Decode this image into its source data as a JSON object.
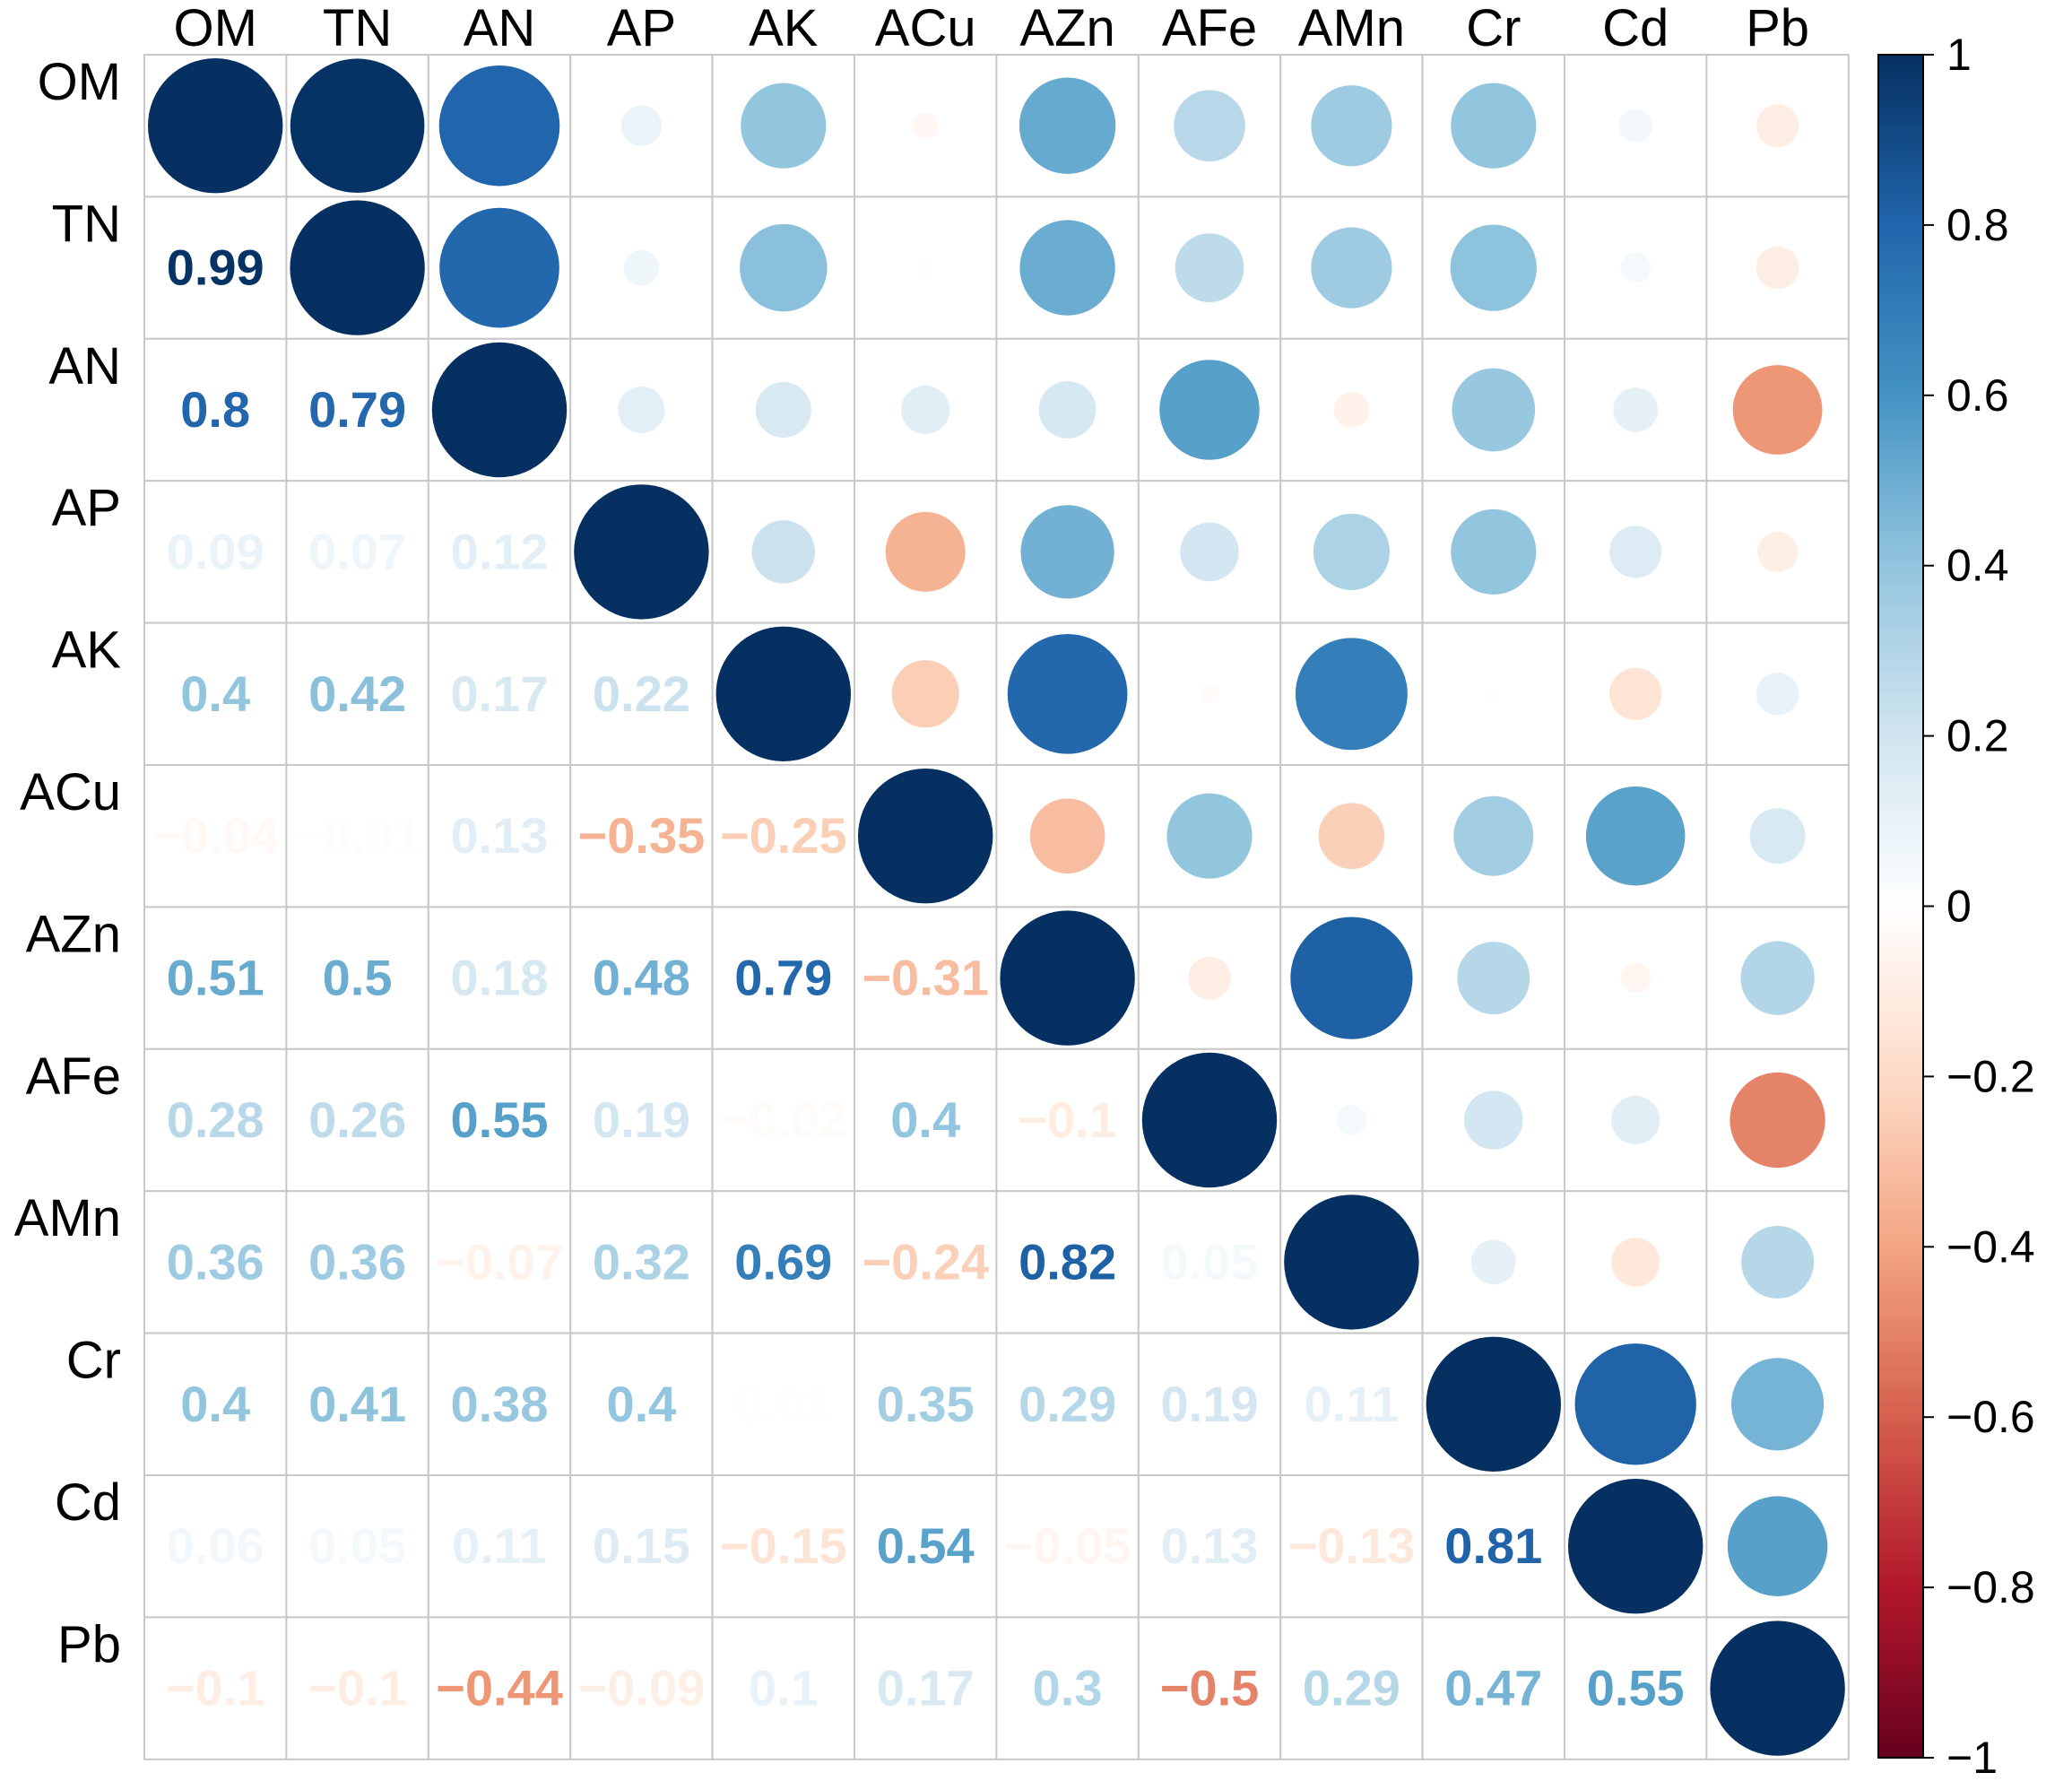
{
  "chart_data": {
    "type": "heatmap",
    "style": "corrplot-mixed",
    "upper": "circle",
    "lower": "number",
    "variables": [
      "OM",
      "TN",
      "AN",
      "AP",
      "AK",
      "ACu",
      "AZn",
      "AFe",
      "AMn",
      "Cr",
      "Cd",
      "Pb"
    ],
    "matrix": [
      [
        1,
        0.99,
        0.8,
        0.09,
        0.4,
        -0.04,
        0.51,
        0.28,
        0.36,
        0.4,
        0.06,
        -0.1
      ],
      [
        0.99,
        1,
        0.79,
        0.07,
        0.42,
        -0.01,
        0.5,
        0.26,
        0.36,
        0.41,
        0.05,
        -0.1
      ],
      [
        0.8,
        0.79,
        1,
        0.12,
        0.17,
        0.13,
        0.18,
        0.55,
        -0.07,
        0.38,
        0.11,
        -0.44
      ],
      [
        0.09,
        0.07,
        0.12,
        1,
        0.22,
        -0.35,
        0.48,
        0.19,
        0.32,
        0.4,
        0.15,
        -0.09
      ],
      [
        0.4,
        0.42,
        0.17,
        0.22,
        1,
        -0.25,
        0.79,
        -0.02,
        0.69,
        0.01,
        -0.15,
        0.1
      ],
      [
        -0.04,
        -0.01,
        0.13,
        -0.35,
        -0.25,
        1,
        -0.31,
        0.4,
        -0.24,
        0.35,
        0.54,
        0.17
      ],
      [
        0.51,
        0.5,
        0.18,
        0.48,
        0.79,
        -0.31,
        1,
        -0.1,
        0.82,
        0.29,
        -0.05,
        0.3
      ],
      [
        0.28,
        0.26,
        0.55,
        0.19,
        -0.02,
        0.4,
        -0.1,
        1,
        0.05,
        0.19,
        0.13,
        -0.5
      ],
      [
        0.36,
        0.36,
        -0.07,
        0.32,
        0.69,
        -0.24,
        0.82,
        0.05,
        1,
        0.11,
        -0.13,
        0.29
      ],
      [
        0.4,
        0.41,
        0.38,
        0.4,
        0.01,
        0.35,
        0.29,
        0.19,
        0.11,
        1,
        0.81,
        0.47
      ],
      [
        0.06,
        0.05,
        0.11,
        0.15,
        -0.15,
        0.54,
        -0.05,
        0.13,
        -0.13,
        0.81,
        1,
        0.55
      ],
      [
        -0.1,
        -0.1,
        -0.44,
        -0.09,
        0.1,
        0.17,
        0.3,
        -0.5,
        0.29,
        0.47,
        0.55,
        1
      ]
    ],
    "colorbar": {
      "range": [
        -1,
        1
      ],
      "ticks": [
        1,
        0.8,
        0.6,
        0.4,
        0.2,
        0,
        -0.2,
        -0.4,
        -0.6,
        -0.8,
        -1
      ],
      "tick_labels": [
        "1",
        "0.8",
        "0.6",
        "0.4",
        "0.2",
        "0",
        "−0.2",
        "−0.4",
        "−0.6",
        "−0.8",
        "−1"
      ]
    },
    "colors": {
      "negative_max": "#67001f",
      "positive_max": "#053061",
      "neutral": "#ffffff",
      "grid": "#c8c8c8",
      "label": "#000000"
    },
    "palette": [
      "#67001f",
      "#b2182b",
      "#d6604d",
      "#f4a582",
      "#fddbc7",
      "#ffffff",
      "#d1e5f0",
      "#92c5de",
      "#4393c3",
      "#2166ac",
      "#053061"
    ]
  }
}
